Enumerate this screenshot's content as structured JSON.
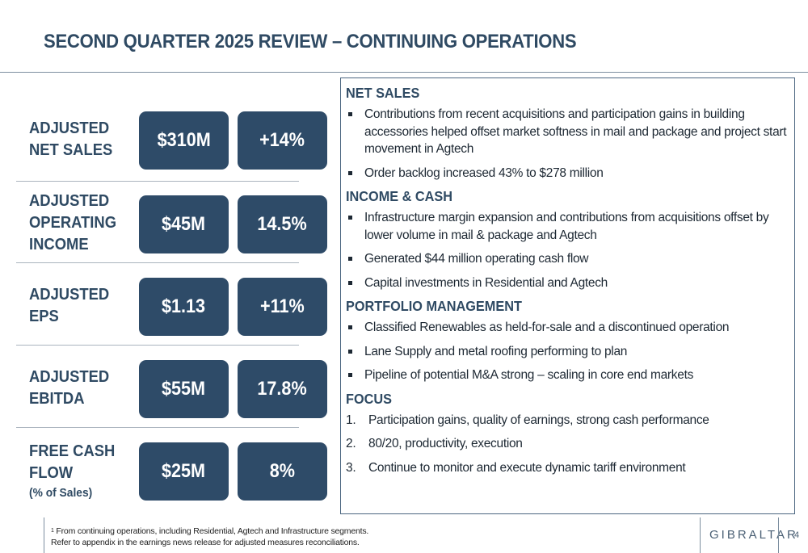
{
  "title": "SECOND QUARTER 2025 REVIEW – CONTINUING OPERATIONS",
  "metrics": [
    {
      "label_lines": [
        "ADJUSTED",
        "NET SALES"
      ],
      "value": "$310M",
      "secondary": "+14%"
    },
    {
      "label_lines": [
        "ADJUSTED",
        "OPERATING",
        "INCOME"
      ],
      "value": "$45M",
      "secondary": "14.5%"
    },
    {
      "label_lines": [
        "ADJUSTED",
        "EPS"
      ],
      "value": "$1.13",
      "secondary": "+11%"
    },
    {
      "label_lines": [
        "ADJUSTED",
        "EBITDA"
      ],
      "value": "$55M",
      "secondary": "17.8%"
    },
    {
      "label_lines": [
        "FREE CASH",
        "FLOW"
      ],
      "label_sub": "(% of Sales)",
      "value": "$25M",
      "secondary": "8%"
    }
  ],
  "sections": {
    "net_sales": {
      "heading": "NET SALES",
      "bullets": [
        "Contributions from recent acquisitions and participation gains in building accessories helped offset market softness in mail and package and project start movement in Agtech",
        "Order backlog increased 43% to $278 million"
      ]
    },
    "income_cash": {
      "heading": "INCOME & CASH",
      "bullets": [
        "Infrastructure margin expansion and contributions from acquisitions offset by lower volume in mail & package and Agtech",
        "Generated $44 million operating cash flow",
        "Capital investments in Residential and Agtech"
      ]
    },
    "portfolio": {
      "heading": "PORTFOLIO MANAGEMENT",
      "bullets": [
        "Classified Renewables as held-for-sale and a discontinued operation",
        "Lane Supply and metal roofing performing to plan",
        "Pipeline of potential M&A strong – scaling in core end markets"
      ]
    },
    "focus": {
      "heading": "FOCUS",
      "items": [
        {
          "n": "1.",
          "text": "Participation gains, quality of earnings, strong cash performance"
        },
        {
          "n": "2.",
          "text": "80/20, productivity, execution"
        },
        {
          "n": "3.",
          "text": "Continue to monitor and execute dynamic tariff environment"
        }
      ]
    }
  },
  "footnote": {
    "marker": "1",
    "line1": " From continuing operations, including Residential, Agtech and Infrastructure segments.",
    "line2": "Refer to appendix in the earnings news release for adjusted measures reconciliations."
  },
  "logo_text": "GIBRALTAR",
  "page_number": "4",
  "colors": {
    "tile": "#2e4b68",
    "heading": "#2f4a63"
  }
}
